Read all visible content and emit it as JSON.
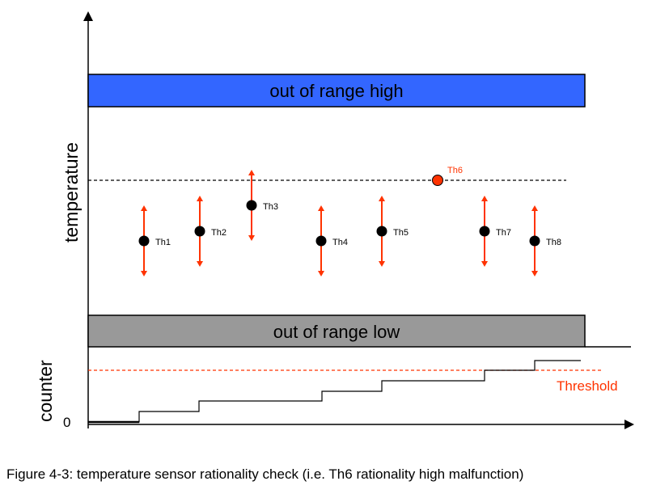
{
  "axes": {
    "temperature_label": "temperature",
    "counter_label": "counter",
    "counter_zero_label": "0"
  },
  "bands": {
    "high": {
      "label": "out of range high",
      "color": "#3366ff"
    },
    "low": {
      "label": "out of range low",
      "color": "#999999"
    }
  },
  "threshold": {
    "label": "Threshold",
    "color": "#ff3300"
  },
  "sensors": [
    {
      "label": "Th1",
      "value": 298,
      "spread": 44,
      "malfunction": false
    },
    {
      "label": "Th2",
      "value": 286,
      "spread": 44,
      "malfunction": false
    },
    {
      "label": "Th3",
      "value": 254,
      "spread": 44,
      "malfunction": false
    },
    {
      "label": "Th4",
      "value": 298,
      "spread": 44,
      "malfunction": false
    },
    {
      "label": "Th5",
      "value": 286,
      "spread": 44,
      "malfunction": false
    },
    {
      "label": "Th6",
      "value": 223,
      "spread": 0,
      "malfunction": true
    },
    {
      "label": "Th7",
      "value": 286,
      "spread": 44,
      "malfunction": false
    },
    {
      "label": "Th8",
      "value": 298,
      "spread": 44,
      "malfunction": false
    }
  ],
  "colors": {
    "sensor_dot": "#000000",
    "error_bar": "#ff3300",
    "malfunction_dot": "#ff3300"
  },
  "caption": "Figure 4-3: temperature sensor rationality check (i.e. Th6 rationality high malfunction)"
}
